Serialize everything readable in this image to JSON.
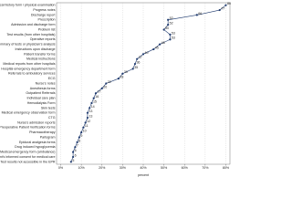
{
  "chart_data": {
    "type": "line",
    "x_label": "percent",
    "categories": [
      "Medical history form / physical examination",
      "Progress notes",
      "Discharge report",
      "Prescription",
      "Admission and discharge form",
      "Problem list",
      "Test results (from other hospitals)",
      "Operative reports",
      "Summary of tests or physician's analysis",
      "Instructions upon discharge",
      "Patient transfer forms",
      "Medical instructions",
      "Medical reports from other hospitals",
      "Hospital emergency department form",
      "Referrals to ambulatory services",
      "ECG",
      "Nurse's notes",
      "Anesthesia forms",
      "Outpatient Referrals",
      "Individual care plan",
      "Hemodialysis Form",
      "Skin tests",
      "Medical emergency observation form",
      "CTG",
      "Nurse's admission reports",
      "Preoperative Patient Verification forms",
      "Pharmacotherapy",
      "Partogram",
      "Epidural analgesia forms",
      "Drug induced hypoglycemia",
      "Medical emergency form (ambulance)",
      "Patient's informed consent for medical care",
      "Test results not accessible in the EPR"
    ],
    "values": [
      80,
      77,
      66,
      52,
      52,
      50,
      53,
      53,
      48,
      45,
      40,
      37,
      36,
      35,
      30,
      28,
      22,
      20,
      17,
      16,
      15,
      14,
      13,
      13,
      12,
      11,
      10,
      9,
      8,
      7,
      6,
      6,
      5
    ],
    "color": "#1f3a6e",
    "xlim": [
      -2,
      82
    ],
    "xticks": [
      {
        "value": 0,
        "label": "0%"
      },
      {
        "value": 10,
        "label": "10%"
      },
      {
        "value": 20,
        "label": "20%"
      },
      {
        "value": 30,
        "label": "30%"
      },
      {
        "value": 40,
        "label": "40%"
      },
      {
        "value": 50,
        "label": "50%"
      },
      {
        "value": 60,
        "label": "60%"
      },
      {
        "value": 70,
        "label": "70%"
      },
      {
        "value": 80,
        "label": "80%"
      }
    ],
    "grid": true
  }
}
